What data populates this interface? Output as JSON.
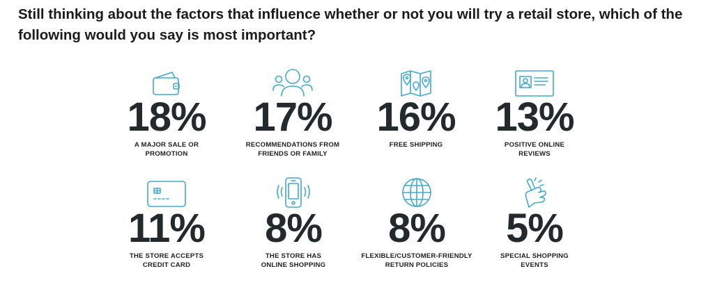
{
  "question": "Still thinking about the factors that influence whether or not you will try a retail store, which of the following would you say is most important?",
  "chart_data": {
    "type": "table",
    "title": "Still thinking about the factors that influence whether or not you will try a retail store, which of the following would you say is most important?",
    "unit": "%",
    "items": [
      {
        "icon": "wallet-icon",
        "value": 18,
        "display": "18%",
        "label_lines": [
          "A MAJOR SALE OR",
          "PROMOTION"
        ]
      },
      {
        "icon": "people-icon",
        "value": 17,
        "display": "17%",
        "label_lines": [
          "RECOMMENDATIONS FROM",
          "FRIENDS OR FAMILY"
        ]
      },
      {
        "icon": "map-icon",
        "value": 16,
        "display": "16%",
        "label_lines": [
          "FREE SHIPPING"
        ]
      },
      {
        "icon": "review-card-icon",
        "value": 13,
        "display": "13%",
        "label_lines": [
          "POSITIVE ONLINE",
          "REVIEWS"
        ]
      },
      {
        "icon": "credit-card-icon",
        "value": 11,
        "display": "11%",
        "label_lines": [
          "THE STORE ACCEPTS",
          "CREDIT CARD"
        ]
      },
      {
        "icon": "smartphone-icon",
        "value": 8,
        "display": "8%",
        "label_lines": [
          "THE STORE HAS",
          "ONLINE SHOPPING"
        ]
      },
      {
        "icon": "globe-icon",
        "value": 8,
        "display": "8%",
        "label_lines": [
          "FLEXIBLE/CUSTOMER-FRIENDLY",
          "RETURN POLICIES"
        ]
      },
      {
        "icon": "snapping-hand-icon",
        "value": 5,
        "display": "5%",
        "label_lines": [
          "SPECIAL SHOPPING",
          "EVENTS"
        ]
      }
    ]
  },
  "colors": {
    "icon": "#3fa9d0",
    "number": "#222a2e",
    "text": "#1f1f1f"
  }
}
